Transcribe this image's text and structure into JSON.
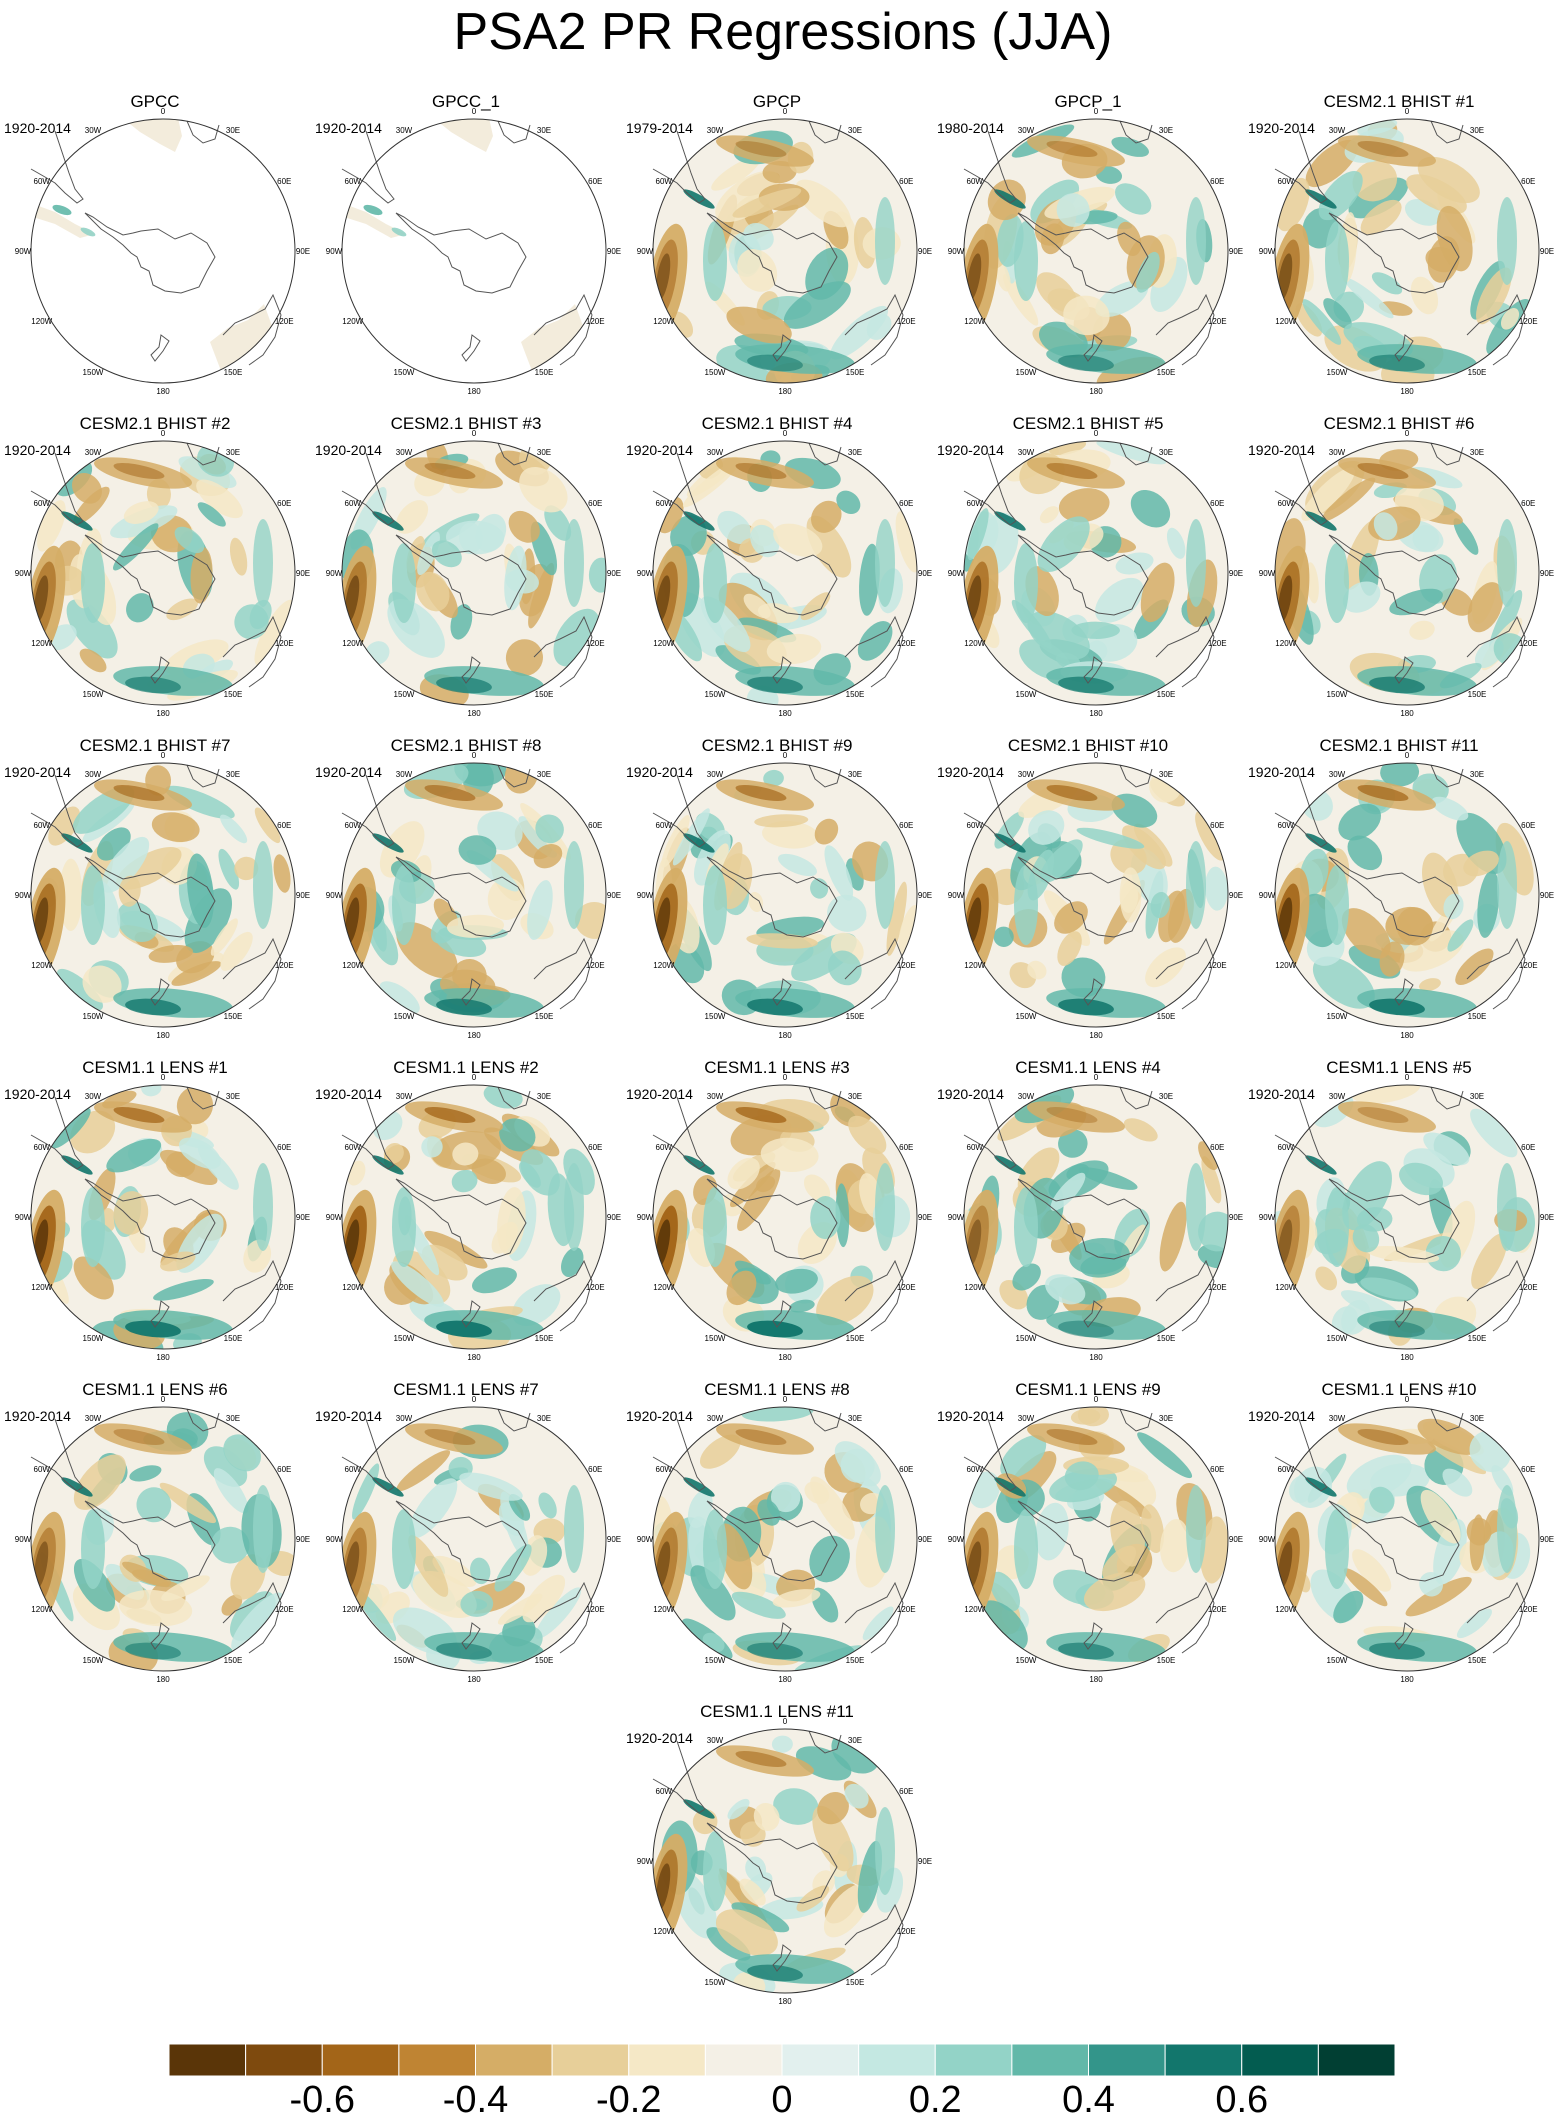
{
  "title": "PSA2 PR Regressions (JJA)",
  "lon_labels": [
    "0",
    "30E",
    "60E",
    "90E",
    "120E",
    "150E",
    "180",
    "150W",
    "120W",
    "90W",
    "60W",
    "30W"
  ],
  "panels": [
    {
      "title": "GPCC",
      "years": "1920-2014",
      "style": "land"
    },
    {
      "title": "GPCC_1",
      "years": "1920-2014",
      "style": "land"
    },
    {
      "title": "GPCP",
      "years": "1979-2014",
      "style": "field"
    },
    {
      "title": "GPCP_1",
      "years": "1980-2014",
      "style": "field"
    },
    {
      "title": "CESM2.1 BHIST #1",
      "years": "1920-2014",
      "style": "field"
    },
    {
      "title": "CESM2.1 BHIST #2",
      "years": "1920-2014",
      "style": "field"
    },
    {
      "title": "CESM2.1 BHIST #3",
      "years": "1920-2014",
      "style": "field"
    },
    {
      "title": "CESM2.1 BHIST #4",
      "years": "1920-2014",
      "style": "field"
    },
    {
      "title": "CESM2.1 BHIST #5",
      "years": "1920-2014",
      "style": "field"
    },
    {
      "title": "CESM2.1 BHIST #6",
      "years": "1920-2014",
      "style": "field"
    },
    {
      "title": "CESM2.1 BHIST #7",
      "years": "1920-2014",
      "style": "field"
    },
    {
      "title": "CESM2.1 BHIST #8",
      "years": "1920-2014",
      "style": "field"
    },
    {
      "title": "CESM2.1 BHIST #9",
      "years": "1920-2014",
      "style": "field"
    },
    {
      "title": "CESM2.1 BHIST #10",
      "years": "1920-2014",
      "style": "field"
    },
    {
      "title": "CESM2.1 BHIST #11",
      "years": "1920-2014",
      "style": "field"
    },
    {
      "title": "CESM1.1 LENS #1",
      "years": "1920-2014",
      "style": "field"
    },
    {
      "title": "CESM1.1 LENS #2",
      "years": "1920-2014",
      "style": "field"
    },
    {
      "title": "CESM1.1 LENS #3",
      "years": "1920-2014",
      "style": "field"
    },
    {
      "title": "CESM1.1 LENS #4",
      "years": "1920-2014",
      "style": "field"
    },
    {
      "title": "CESM1.1 LENS #5",
      "years": "1920-2014",
      "style": "field"
    },
    {
      "title": "CESM1.1 LENS #6",
      "years": "1920-2014",
      "style": "field"
    },
    {
      "title": "CESM1.1 LENS #7",
      "years": "1920-2014",
      "style": "field"
    },
    {
      "title": "CESM1.1 LENS #8",
      "years": "1920-2014",
      "style": "field"
    },
    {
      "title": "CESM1.1 LENS #9",
      "years": "1920-2014",
      "style": "field"
    },
    {
      "title": "CESM1.1 LENS #10",
      "years": "1920-2014",
      "style": "field"
    },
    {
      "title": "CESM1.1 LENS #11",
      "years": "1920-2014",
      "style": "field"
    }
  ],
  "colorbar": {
    "colors": [
      "#5a3508",
      "#7e4a0e",
      "#a36518",
      "#bf8433",
      "#d5ad66",
      "#e7cf99",
      "#f5e8c6",
      "#f4f0e6",
      "#e2f0ee",
      "#c4e8e2",
      "#93d3c7",
      "#62b8a9",
      "#33958a",
      "#12766c",
      "#035c50",
      "#013f33"
    ],
    "labels": [
      "-0.6",
      "-0.4",
      "-0.2",
      "0",
      "0.2",
      "0.4",
      "0.6"
    ]
  }
}
